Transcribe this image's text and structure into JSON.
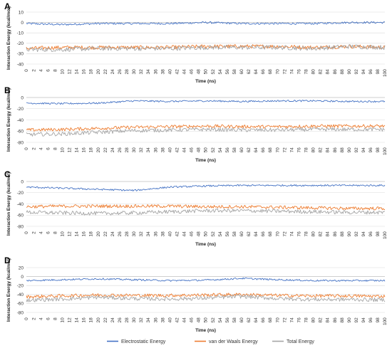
{
  "chart_data": [
    {
      "panel": "A",
      "type": "line",
      "xlabel": "Time (ns)",
      "ylabel": "Interaction Energy (kcal/mol)",
      "xlim": [
        0,
        100
      ],
      "ylim": [
        -40,
        10
      ],
      "yticks": [
        10,
        0,
        -10,
        -20,
        -30,
        -40
      ],
      "series": [
        {
          "name": "Electrostatic Energy",
          "color": "#4472C4",
          "x": [
            0,
            10,
            20,
            30,
            40,
            50,
            60,
            70,
            80,
            90,
            100
          ],
          "y": [
            -1,
            -2,
            -1,
            -1,
            -1,
            0,
            -1,
            -1,
            -1,
            0,
            0
          ]
        },
        {
          "name": "van der Waals Energy",
          "color": "#ED7D31",
          "x": [
            0,
            10,
            20,
            30,
            40,
            50,
            60,
            70,
            80,
            90,
            100
          ],
          "y": [
            -25,
            -24,
            -24,
            -24,
            -24,
            -23,
            -23,
            -23,
            -24,
            -23,
            -24
          ]
        },
        {
          "name": "Total Energy",
          "color": "#A5A5A5",
          "x": [
            0,
            10,
            20,
            30,
            40,
            50,
            60,
            70,
            80,
            90,
            100
          ],
          "y": [
            -26,
            -26,
            -25,
            -25,
            -25,
            -24,
            -24,
            -24,
            -25,
            -23,
            -24
          ]
        }
      ]
    },
    {
      "panel": "B",
      "type": "line",
      "xlabel": "Time (ns)",
      "ylabel": "Interaction Energy (kcal/mol)",
      "xlim": [
        0,
        100
      ],
      "ylim": [
        -80,
        0
      ],
      "yticks": [
        0,
        -20,
        -40,
        -60,
        -80
      ],
      "series": [
        {
          "name": "Electrostatic Energy",
          "color": "#4472C4",
          "x": [
            0,
            10,
            20,
            30,
            40,
            50,
            60,
            70,
            80,
            90,
            100
          ],
          "y": [
            -10,
            -11,
            -10,
            -6,
            -7,
            -6,
            -7,
            -6,
            -6,
            -7,
            -7
          ]
        },
        {
          "name": "van der Waals Energy",
          "color": "#ED7D31",
          "x": [
            0,
            10,
            20,
            30,
            40,
            50,
            60,
            70,
            80,
            90,
            100
          ],
          "y": [
            -58,
            -57,
            -55,
            -53,
            -52,
            -51,
            -52,
            -52,
            -51,
            -51,
            -51
          ]
        },
        {
          "name": "Total Energy",
          "color": "#A5A5A5",
          "x": [
            0,
            10,
            20,
            30,
            40,
            50,
            60,
            70,
            80,
            90,
            100
          ],
          "y": [
            -66,
            -65,
            -62,
            -59,
            -58,
            -57,
            -58,
            -58,
            -57,
            -57,
            -57
          ]
        }
      ]
    },
    {
      "panel": "C",
      "type": "line",
      "xlabel": "Time (ns)",
      "ylabel": "Interaction Energy (kcal/mol)",
      "xlim": [
        0,
        100
      ],
      "ylim": [
        -80,
        0
      ],
      "yticks": [
        0,
        -20,
        -40,
        -60,
        -80
      ],
      "series": [
        {
          "name": "Electrostatic Energy",
          "color": "#4472C4",
          "x": [
            0,
            10,
            20,
            30,
            40,
            50,
            60,
            70,
            80,
            90,
            100
          ],
          "y": [
            -10,
            -12,
            -14,
            -16,
            -10,
            -8,
            -7,
            -7,
            -7,
            -7,
            -7
          ]
        },
        {
          "name": "van der Waals Energy",
          "color": "#ED7D31",
          "x": [
            0,
            10,
            20,
            30,
            40,
            50,
            60,
            70,
            80,
            90,
            100
          ],
          "y": [
            -45,
            -44,
            -44,
            -44,
            -44,
            -45,
            -45,
            -46,
            -47,
            -48,
            -48
          ]
        },
        {
          "name": "Total Energy",
          "color": "#A5A5A5",
          "x": [
            0,
            10,
            20,
            30,
            40,
            50,
            60,
            70,
            80,
            90,
            100
          ],
          "y": [
            -55,
            -56,
            -57,
            -56,
            -54,
            -52,
            -52,
            -53,
            -54,
            -55,
            -55
          ]
        }
      ]
    },
    {
      "panel": "D",
      "type": "line",
      "xlabel": "Time (ns)",
      "ylabel": "Interaction Energy (kcal/mol)",
      "xlim": [
        0,
        100
      ],
      "ylim": [
        -80,
        20
      ],
      "yticks": [
        20,
        0,
        -20,
        -40,
        -60,
        -80
      ],
      "series": [
        {
          "name": "Electrostatic Energy",
          "color": "#4472C4",
          "x": [
            0,
            10,
            20,
            30,
            40,
            50,
            60,
            70,
            80,
            90,
            100
          ],
          "y": [
            -9,
            -7,
            -5,
            -7,
            -9,
            -8,
            -4,
            -7,
            -9,
            -9,
            -9
          ]
        },
        {
          "name": "van der Waals Energy",
          "color": "#ED7D31",
          "x": [
            0,
            10,
            20,
            30,
            40,
            50,
            60,
            70,
            80,
            90,
            100
          ],
          "y": [
            -45,
            -43,
            -41,
            -42,
            -42,
            -41,
            -40,
            -42,
            -43,
            -43,
            -44
          ]
        },
        {
          "name": "Total Energy",
          "color": "#A5A5A5",
          "x": [
            0,
            10,
            20,
            30,
            40,
            50,
            60,
            70,
            80,
            90,
            100
          ],
          "y": [
            -53,
            -50,
            -46,
            -49,
            -50,
            -48,
            -44,
            -49,
            -51,
            -51,
            -52
          ]
        }
      ]
    }
  ],
  "legend": {
    "placement": "bottom",
    "items": [
      {
        "label": "Electrostatic Energy",
        "color": "#4472C4"
      },
      {
        "label": "van der Waals Energy",
        "color": "#ED7D31"
      },
      {
        "label": "Total Energy",
        "color": "#A5A5A5"
      }
    ]
  }
}
